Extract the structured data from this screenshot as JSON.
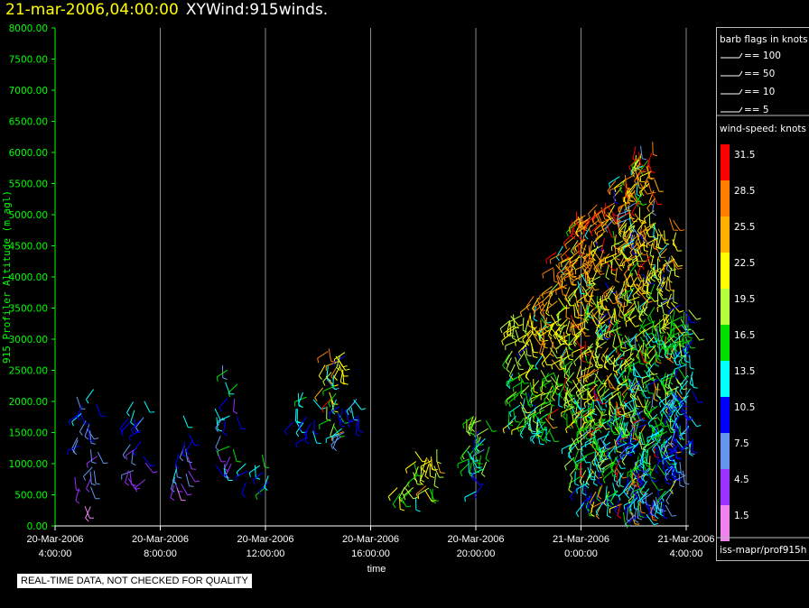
{
  "header": {
    "date": "21-mar-2006,04:00:00",
    "name": "XYWind:915winds."
  },
  "footer": {
    "notice": "REAL-TIME DATA, NOT CHECKED FOR QUALITY"
  },
  "legend": {
    "barb_title": "barb flags in knots",
    "barbs": [
      {
        "label": "== 100",
        "knots": 100
      },
      {
        "label": "== 50",
        "knots": 50
      },
      {
        "label": "== 10",
        "knots": 10
      },
      {
        "label": "== 5",
        "knots": 5
      }
    ],
    "speed_title": "wind-speed: knots",
    "source": "iss-mapr/prof915h",
    "scale": [
      {
        "label": "31.5",
        "color": "#ff0000"
      },
      {
        "label": "28.5",
        "color": "#ff8000"
      },
      {
        "label": "25.5",
        "color": "#ffb000"
      },
      {
        "label": "22.5",
        "color": "#ffff00"
      },
      {
        "label": "19.5",
        "color": "#b4ff3c"
      },
      {
        "label": "16.5",
        "color": "#00e000"
      },
      {
        "label": "13.5",
        "color": "#00ffff"
      },
      {
        "label": "10.5",
        "color": "#0000ff"
      },
      {
        "label": "7.5",
        "color": "#6495ed"
      },
      {
        "label": "4.5",
        "color": "#9b30ff"
      },
      {
        "label": "1.5",
        "color": "#ee82ee"
      }
    ]
  },
  "chart_data": {
    "type": "scatter",
    "xlabel": "time",
    "ylabel": "915 Profiler Altitude (m agl)",
    "x_ticks": [
      {
        "line1": "20-Mar-2006",
        "line2": "4:00:00",
        "hour": 0
      },
      {
        "line1": "20-Mar-2006",
        "line2": "8:00:00",
        "hour": 4
      },
      {
        "line1": "20-Mar-2006",
        "line2": "12:00:00",
        "hour": 8
      },
      {
        "line1": "20-Mar-2006",
        "line2": "16:00:00",
        "hour": 12
      },
      {
        "line1": "20-Mar-2006",
        "line2": "20:00:00",
        "hour": 16
      },
      {
        "line1": "21-Mar-2006",
        "line2": "0:00:00",
        "hour": 20
      },
      {
        "line1": "21-Mar-2006",
        "line2": "4:00:00",
        "hour": 24
      }
    ],
    "y_ticks": [
      "0.00",
      "500.00",
      "1000.00",
      "1500.00",
      "2000.00",
      "2500.00",
      "3000.00",
      "3500.00",
      "4000.00",
      "4500.00",
      "5000.00",
      "5500.00",
      "6000.00",
      "6500.00",
      "7000.00",
      "7500.00",
      "8000.00"
    ],
    "xlim_hours": [
      0,
      24
    ],
    "ylim": [
      0,
      8000
    ],
    "grid": "vertical",
    "series": [
      {
        "hour": 1.2,
        "alt_min": 300,
        "alt_max": 2200,
        "spd_min": 1,
        "spd_max": 14,
        "density": 0.35
      },
      {
        "hour": 3.0,
        "alt_min": 700,
        "alt_max": 2100,
        "spd_min": 2,
        "spd_max": 16,
        "density": 0.35
      },
      {
        "hour": 4.8,
        "alt_min": 600,
        "alt_max": 1800,
        "spd_min": 2,
        "spd_max": 14,
        "density": 0.35
      },
      {
        "hour": 6.5,
        "alt_min": 900,
        "alt_max": 2650,
        "spd_min": 3,
        "spd_max": 19,
        "density": 0.3
      },
      {
        "hour": 7.7,
        "alt_min": 400,
        "alt_max": 1200,
        "spd_min": 6,
        "spd_max": 18,
        "density": 0.3
      },
      {
        "hour": 9.5,
        "alt_min": 1400,
        "alt_max": 2250,
        "spd_min": 8,
        "spd_max": 17,
        "density": 0.45
      },
      {
        "hour": 10.6,
        "alt_min": 1400,
        "alt_max": 2900,
        "spd_min": 7,
        "spd_max": 32,
        "density": 0.55
      },
      {
        "hour": 11.2,
        "alt_min": 1400,
        "alt_max": 2100,
        "spd_min": 7,
        "spd_max": 15,
        "density": 0.55
      },
      {
        "hour": 13.4,
        "alt_min": 450,
        "alt_max": 1050,
        "spd_min": 14,
        "spd_max": 24,
        "density": 0.6
      },
      {
        "hour": 14.1,
        "alt_min": 550,
        "alt_max": 1400,
        "spd_min": 14,
        "spd_max": 30,
        "density": 0.55
      },
      {
        "hour": 16.1,
        "alt_min": 550,
        "alt_max": 1800,
        "spd_min": 8,
        "spd_max": 22,
        "density": 0.7
      },
      {
        "hour": 17.7,
        "alt_min": 1600,
        "alt_max": 3400,
        "spd_min": 11,
        "spd_max": 24,
        "density": 0.8
      },
      {
        "hour": 18.5,
        "alt_min": 1500,
        "alt_max": 3700,
        "spd_min": 12,
        "spd_max": 30,
        "density": 0.85
      },
      {
        "hour": 19.3,
        "alt_min": 1800,
        "alt_max": 4500,
        "spd_min": 12,
        "spd_max": 33,
        "density": 0.9
      },
      {
        "hour": 20.1,
        "alt_min": 300,
        "alt_max": 5100,
        "spd_min": 9,
        "spd_max": 33,
        "density": 0.95
      },
      {
        "hour": 20.9,
        "alt_min": 300,
        "alt_max": 5200,
        "spd_min": 8,
        "spd_max": 33,
        "density": 0.95
      },
      {
        "hour": 21.7,
        "alt_min": 200,
        "alt_max": 5700,
        "spd_min": 6,
        "spd_max": 33,
        "density": 0.95
      },
      {
        "hour": 22.4,
        "alt_min": 150,
        "alt_max": 6200,
        "spd_min": 6,
        "spd_max": 33,
        "density": 0.95
      },
      {
        "hour": 23.2,
        "alt_min": 300,
        "alt_max": 5000,
        "spd_min": 6,
        "spd_max": 30,
        "density": 0.9
      },
      {
        "hour": 23.8,
        "alt_min": 800,
        "alt_max": 3600,
        "spd_min": 6,
        "spd_max": 20,
        "density": 0.8
      }
    ]
  }
}
